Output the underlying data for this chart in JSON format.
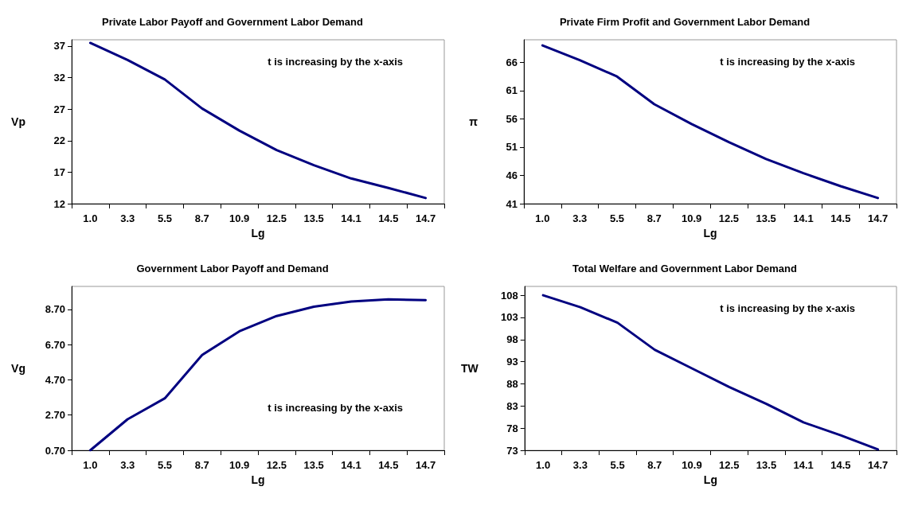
{
  "chart_data": [
    {
      "type": "line",
      "title": "Private Labor Payoff and Government Labor Demand",
      "xlabel": "Lg",
      "ylabel": "Vp",
      "annotations": [
        "t is increasing by the x-axis"
      ],
      "categories": [
        "1.0",
        "3.3",
        "5.5",
        "8.7",
        "10.9",
        "12.5",
        "13.5",
        "14.1",
        "14.5",
        "14.7"
      ],
      "series": [
        {
          "color": "#000080",
          "values": [
            37.5,
            34.8,
            31.7,
            27.1,
            23.6,
            20.5,
            18.1,
            16.0,
            14.5,
            12.9
          ]
        }
      ],
      "ylim": [
        12,
        38
      ],
      "yticks": [
        12,
        17,
        22,
        27,
        32,
        37
      ],
      "grid": false,
      "marker": "none",
      "line_style": "solid"
    },
    {
      "type": "line",
      "title": "Private Firm Profit and Government Labor Demand",
      "xlabel": "Lg",
      "ylabel": "π",
      "annotations": [
        "t is increasing by the x-axis"
      ],
      "categories": [
        "1.0",
        "3.3",
        "5.5",
        "8.7",
        "10.9",
        "12.5",
        "13.5",
        "14.1",
        "14.5",
        "14.7"
      ],
      "series": [
        {
          "color": "#000080",
          "values": [
            69.0,
            66.4,
            63.5,
            58.6,
            55.1,
            51.9,
            48.9,
            46.4,
            44.1,
            42.0
          ]
        }
      ],
      "ylim": [
        41,
        70
      ],
      "yticks": [
        41,
        46,
        51,
        56,
        61,
        66
      ],
      "grid": false,
      "marker": "none",
      "line_style": "solid"
    },
    {
      "type": "line",
      "title": "Government Labor Payoff and Demand",
      "xlabel": "Lg",
      "ylabel": "Vg",
      "annotations": [
        "t is increasing by the x-axis"
      ],
      "categories": [
        "1.0",
        "3.3",
        "5.5",
        "8.7",
        "10.9",
        "12.5",
        "13.5",
        "14.1",
        "14.5",
        "14.7"
      ],
      "series": [
        {
          "color": "#000080",
          "values": [
            0.7,
            2.46,
            3.65,
            6.11,
            7.45,
            8.32,
            8.85,
            9.14,
            9.27,
            9.22
          ]
        }
      ],
      "ylim": [
        0.7,
        10
      ],
      "yticks": [
        {
          "value": 0.7,
          "label": "0.70"
        },
        {
          "value": 2.7,
          "label": "2.70"
        },
        {
          "value": 4.7,
          "label": "4.70"
        },
        {
          "value": 6.7,
          "label": "6.70"
        },
        {
          "value": 8.7,
          "label": "8.70"
        }
      ],
      "grid": false,
      "marker": "none",
      "line_style": "solid"
    },
    {
      "type": "line",
      "title": "Total Welfare and Government Labor Demand",
      "xlabel": "Lg",
      "ylabel": "TW",
      "annotations": [
        "t is increasing by the x-axis"
      ],
      "categories": [
        "1.0",
        "3.3",
        "5.5",
        "8.7",
        "10.9",
        "12.5",
        "13.5",
        "14.1",
        "14.5",
        "14.7"
      ],
      "series": [
        {
          "color": "#000080",
          "values": [
            108.0,
            105.3,
            101.8,
            95.7,
            91.5,
            87.3,
            83.5,
            79.3,
            76.4,
            73.2
          ]
        }
      ],
      "ylim": [
        73,
        110
      ],
      "yticks": [
        73,
        78,
        83,
        88,
        93,
        98,
        103,
        108
      ],
      "grid": false,
      "marker": "none",
      "line_style": "solid"
    }
  ]
}
